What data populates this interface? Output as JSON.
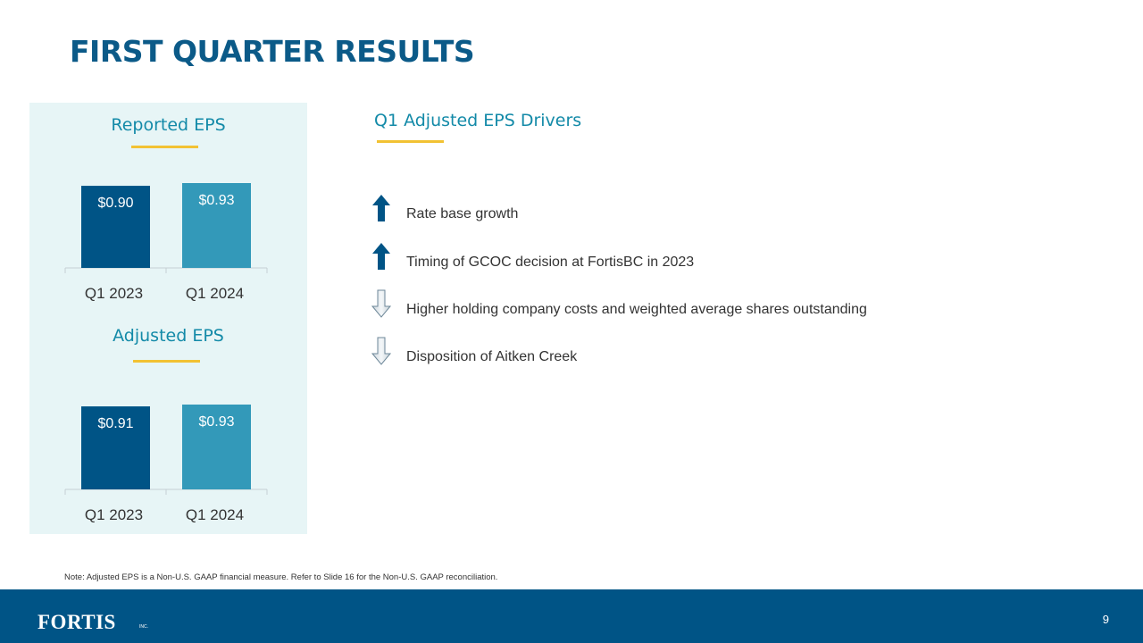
{
  "slide": {
    "title": "FIRST QUARTER RESULTS",
    "page_number": "9",
    "note": "Note: Adjusted EPS is a Non-U.S. GAAP financial measure. Refer to Slide 16 for the Non-U.S. GAAP reconciliation."
  },
  "colors": {
    "title": "#0b5a88",
    "accent_teal": "#138aa8",
    "underline_gold": "#f2c233",
    "panel_bg": "#e7f5f6",
    "bar_q1_2023": "#005486",
    "bar_q1_2024": "#3399b9",
    "footer_bg": "#005486"
  },
  "chart_data": [
    {
      "type": "bar",
      "title": "Reported EPS",
      "categories": [
        "Q1 2023",
        "Q1 2024"
      ],
      "values": [
        0.9,
        0.93
      ],
      "data_labels": [
        "$0.90",
        "$0.93"
      ],
      "xlabel": "",
      "ylabel": "",
      "grid": false,
      "legend": "none"
    },
    {
      "type": "bar",
      "title": "Adjusted EPS",
      "categories": [
        "Q1 2023",
        "Q1 2024"
      ],
      "values": [
        0.91,
        0.93
      ],
      "data_labels": [
        "$0.91",
        "$0.93"
      ],
      "xlabel": "",
      "ylabel": "",
      "grid": false,
      "legend": "none"
    }
  ],
  "drivers": {
    "heading": "Q1 Adjusted EPS Drivers",
    "items": [
      {
        "direction": "up",
        "icon": "arrow-up-icon",
        "text": "Rate base growth"
      },
      {
        "direction": "up",
        "icon": "arrow-up-icon",
        "text": "Timing of GCOC decision at FortisBC in 2023"
      },
      {
        "direction": "down",
        "icon": "arrow-down-icon",
        "text": "Higher holding company costs and weighted average shares outstanding"
      },
      {
        "direction": "down",
        "icon": "arrow-down-icon",
        "text": "Disposition of Aitken Creek"
      }
    ]
  },
  "footer": {
    "logo_text": "FORTIS",
    "logo_suffix": "INC."
  }
}
